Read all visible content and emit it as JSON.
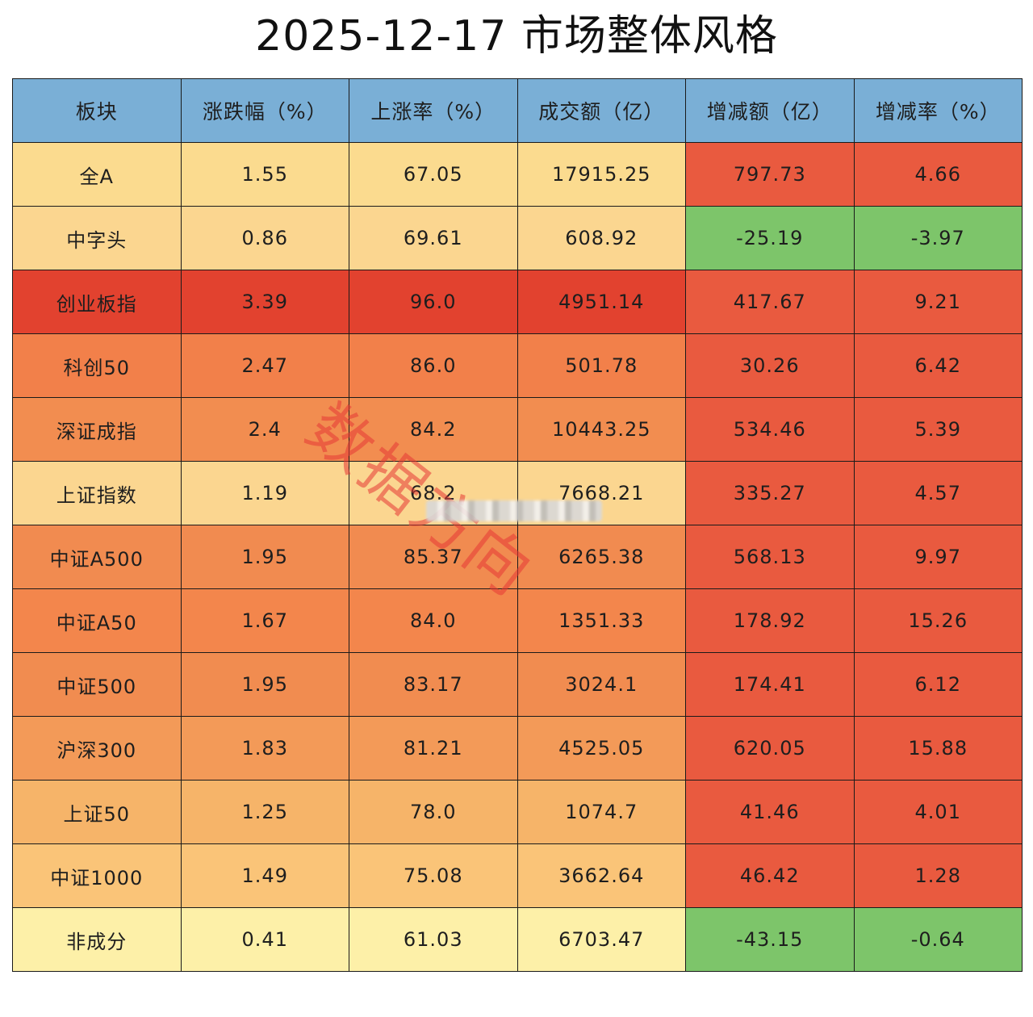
{
  "chart_data": {
    "type": "table",
    "title": "2025-12-17 市场整体风格",
    "columns": [
      "板块",
      "涨跌幅（%）",
      "上涨率（%）",
      "成交额（亿）",
      "增减额（亿）",
      "增减率（%）"
    ],
    "rows": [
      [
        "全A",
        "1.55",
        "67.05",
        "17915.25",
        "797.73",
        "4.66"
      ],
      [
        "中字头",
        "0.86",
        "69.61",
        "608.92",
        "-25.19",
        "-3.97"
      ],
      [
        "创业板指",
        "3.39",
        "96.0",
        "4951.14",
        "417.67",
        "9.21"
      ],
      [
        "科创50",
        "2.47",
        "86.0",
        "501.78",
        "30.26",
        "6.42"
      ],
      [
        "深证成指",
        "2.4",
        "84.2",
        "10443.25",
        "534.46",
        "5.39"
      ],
      [
        "上证指数",
        "1.19",
        "68.2",
        "7668.21",
        "335.27",
        "4.57"
      ],
      [
        "中证A500",
        "1.95",
        "85.37",
        "6265.38",
        "568.13",
        "9.97"
      ],
      [
        "中证A50",
        "1.67",
        "84.0",
        "1351.33",
        "178.92",
        "15.26"
      ],
      [
        "中证500",
        "1.95",
        "83.17",
        "3024.1",
        "174.41",
        "6.12"
      ],
      [
        "沪深300",
        "1.83",
        "81.21",
        "4525.05",
        "620.05",
        "15.88"
      ],
      [
        "上证50",
        "1.25",
        "78.0",
        "1074.7",
        "41.46",
        "4.01"
      ],
      [
        "中证1000",
        "1.49",
        "75.08",
        "3662.64",
        "46.42",
        "1.28"
      ],
      [
        "非成分",
        "0.41",
        "61.03",
        "6703.47",
        "-43.15",
        "-0.64"
      ]
    ],
    "row_colors": [
      "#fbdb8f",
      "#fbd690",
      "#e2422f",
      "#f2804a",
      "#f28d50",
      "#fbd690",
      "#f18b50",
      "#f3864c",
      "#f18c50",
      "#f39a58",
      "#f6b469",
      "#fac478",
      "#fdf0a8"
    ],
    "change_colors": {
      "positive": "#e95a3f",
      "negative": "#7dc56a"
    }
  },
  "watermark": "数据方向"
}
